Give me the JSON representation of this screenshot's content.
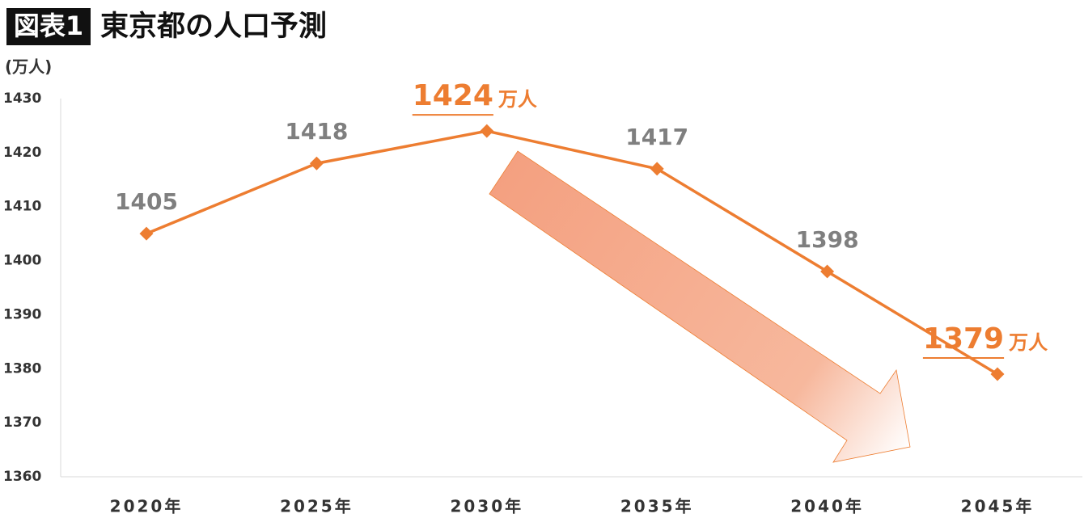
{
  "chart_data": {
    "type": "line",
    "figure_label": "図表1",
    "title": "東京都の人口予測",
    "y_unit": "(万人)",
    "categories": [
      "2020年",
      "2025年",
      "2030年",
      "2035年",
      "2040年",
      "2045年"
    ],
    "values": [
      1405,
      1418,
      1424,
      1417,
      1398,
      1379
    ],
    "color": "#ed7d31",
    "value_label_colors": [
      "#7f7f7f",
      "#7f7f7f",
      "#ed7d31",
      "#7f7f7f",
      "#7f7f7f",
      "#ed7d31"
    ],
    "annotations": [
      "万人",
      "万人"
    ],
    "ylim": [
      1360,
      1430
    ],
    "yticks": [
      1360,
      1370,
      1380,
      1390,
      1400,
      1410,
      1420,
      1430
    ],
    "grid": false
  }
}
